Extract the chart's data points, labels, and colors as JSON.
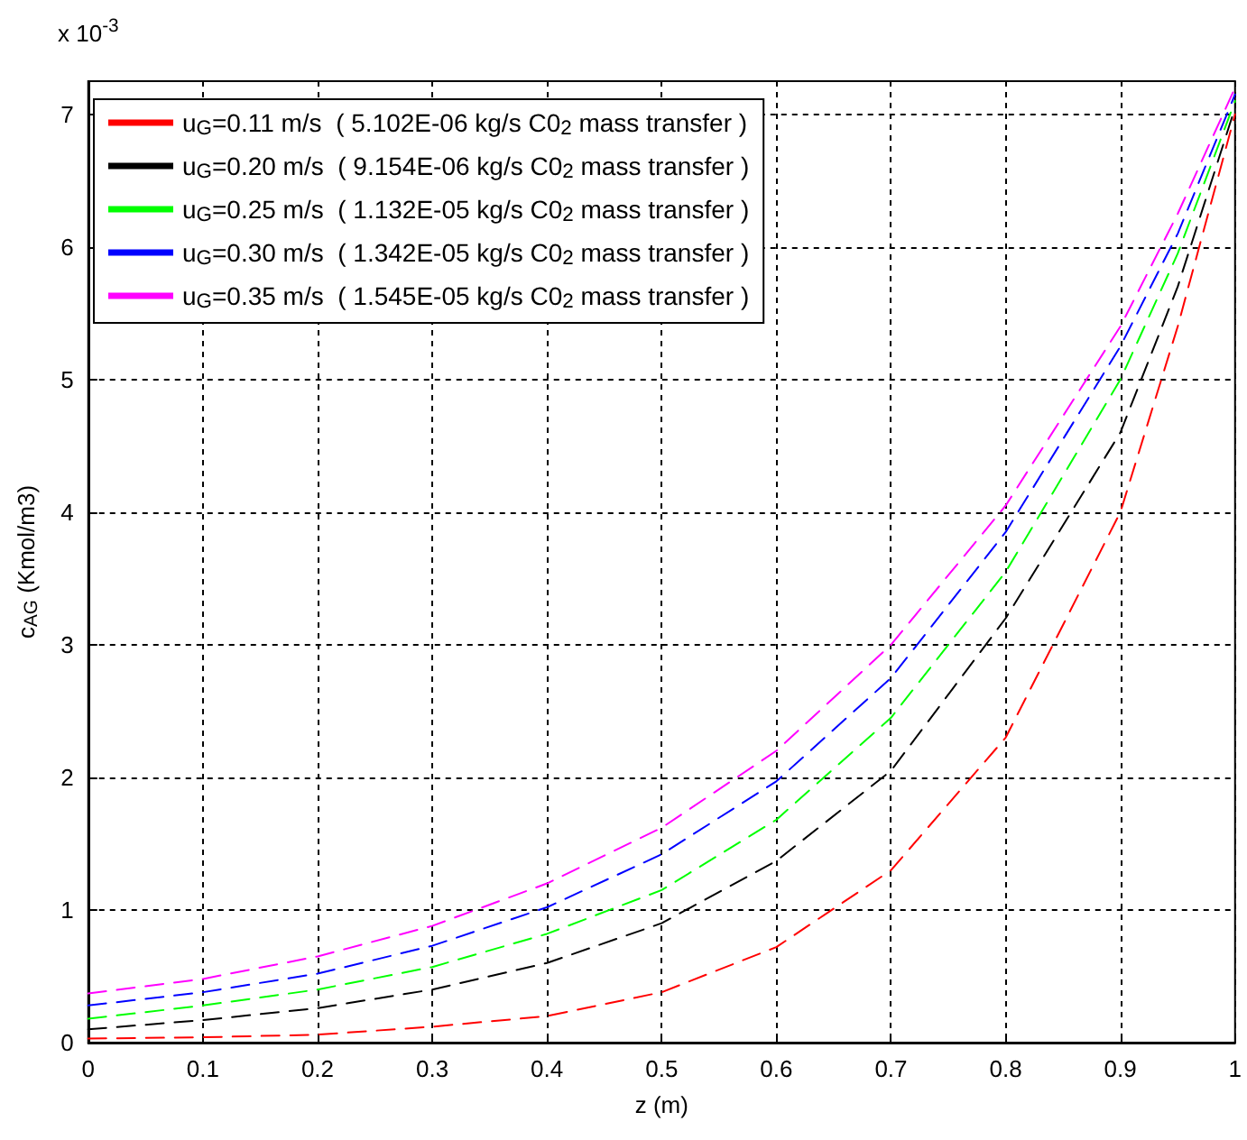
{
  "chart_data": {
    "type": "line",
    "xlabel": "z (m)",
    "ylabel": "c$_{AG}$ (Kmol/m3)",
    "annotations": [
      "x 10$^{-3}$"
    ],
    "x": [
      0,
      0.1,
      0.2,
      0.3,
      0.4,
      0.5,
      0.6,
      0.7,
      0.8,
      0.9,
      0.95,
      1
    ],
    "series": [
      {
        "name": "u$_{G}$=0.11 m/s  ( 5.102E-06 kg/s C0$_{2}$ mass transfer )",
        "color": "#ff0000",
        "values": [
          0.03,
          0.04,
          0.06,
          0.12,
          0.2,
          0.38,
          0.72,
          1.3,
          2.3,
          4.0,
          5.4,
          7.0
        ]
      },
      {
        "name": "u$_{G}$=0.20 m/s  ( 9.154E-06 kg/s C0$_{2}$ mass transfer )",
        "color": "#000000",
        "values": [
          0.1,
          0.17,
          0.26,
          0.4,
          0.6,
          0.9,
          1.37,
          2.05,
          3.2,
          4.6,
          5.7,
          7.05
        ]
      },
      {
        "name": "u$_{G}$=0.25 m/s  ( 1.132E-05 kg/s C0$_{2}$ mass transfer )",
        "color": "#00ff00",
        "values": [
          0.18,
          0.28,
          0.4,
          0.57,
          0.82,
          1.15,
          1.68,
          2.45,
          3.55,
          5.0,
          5.95,
          7.1
        ]
      },
      {
        "name": "u$_{G}$=0.30 m/s  ( 1.342E-05 kg/s C0$_{2}$ mass transfer )",
        "color": "#0000ff",
        "values": [
          0.28,
          0.38,
          0.52,
          0.73,
          1.02,
          1.42,
          1.97,
          2.75,
          3.85,
          5.25,
          6.1,
          7.15
        ]
      },
      {
        "name": "u$_{G}$=0.35 m/s  ( 1.545E-05 kg/s C0$_{2}$ mass transfer )",
        "color": "#ff00ff",
        "values": [
          0.37,
          0.48,
          0.65,
          0.88,
          1.2,
          1.62,
          2.2,
          3.0,
          4.05,
          5.4,
          6.25,
          7.2
        ]
      }
    ],
    "xlim": [
      0,
      1
    ],
    "xticks": [
      0,
      0.1,
      0.2,
      0.3,
      0.4,
      0.5,
      0.6,
      0.7,
      0.8,
      0.9,
      1
    ],
    "ylim": [
      0,
      7.25
    ],
    "yticks": [
      0,
      1,
      2,
      3,
      4,
      5,
      6,
      7
    ],
    "grid": true,
    "legend": "top left",
    "marker": "none",
    "line_style": "dashed"
  }
}
